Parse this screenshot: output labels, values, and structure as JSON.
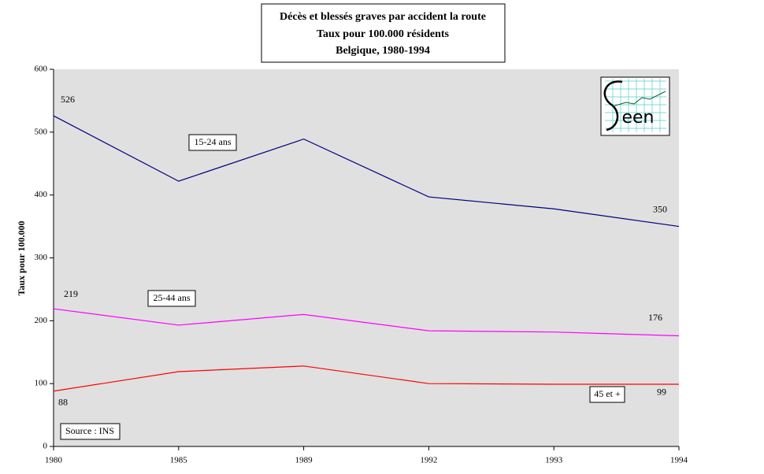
{
  "chart_data": {
    "type": "line",
    "title": [
      "Décès et  blessés graves par accident la route",
      "Taux pour 100.000 résidents",
      "Belgique, 1980-1994"
    ],
    "y_label": "Taux pour 100.000",
    "annotation": "Source : INS",
    "categories": [
      "1980",
      "1985",
      "1989",
      "1992",
      "1993",
      "1994"
    ],
    "series": [
      {
        "name": "15-24 ans",
        "color": "#000080",
        "values": [
          526,
          422,
          489,
          397,
          378,
          350
        ]
      },
      {
        "name": "25-44 ans",
        "color": "#ff00ff",
        "values": [
          219,
          193,
          210,
          184,
          182,
          176
        ]
      },
      {
        "name": "45 et +",
        "color": "#ff0000",
        "values": [
          88,
          119,
          128,
          100,
          99,
          99
        ]
      }
    ],
    "ylim": [
      0,
      600
    ],
    "yticks": [
      0,
      100,
      200,
      300,
      400,
      500,
      600
    ],
    "plot_background": "#e0e0e0"
  }
}
